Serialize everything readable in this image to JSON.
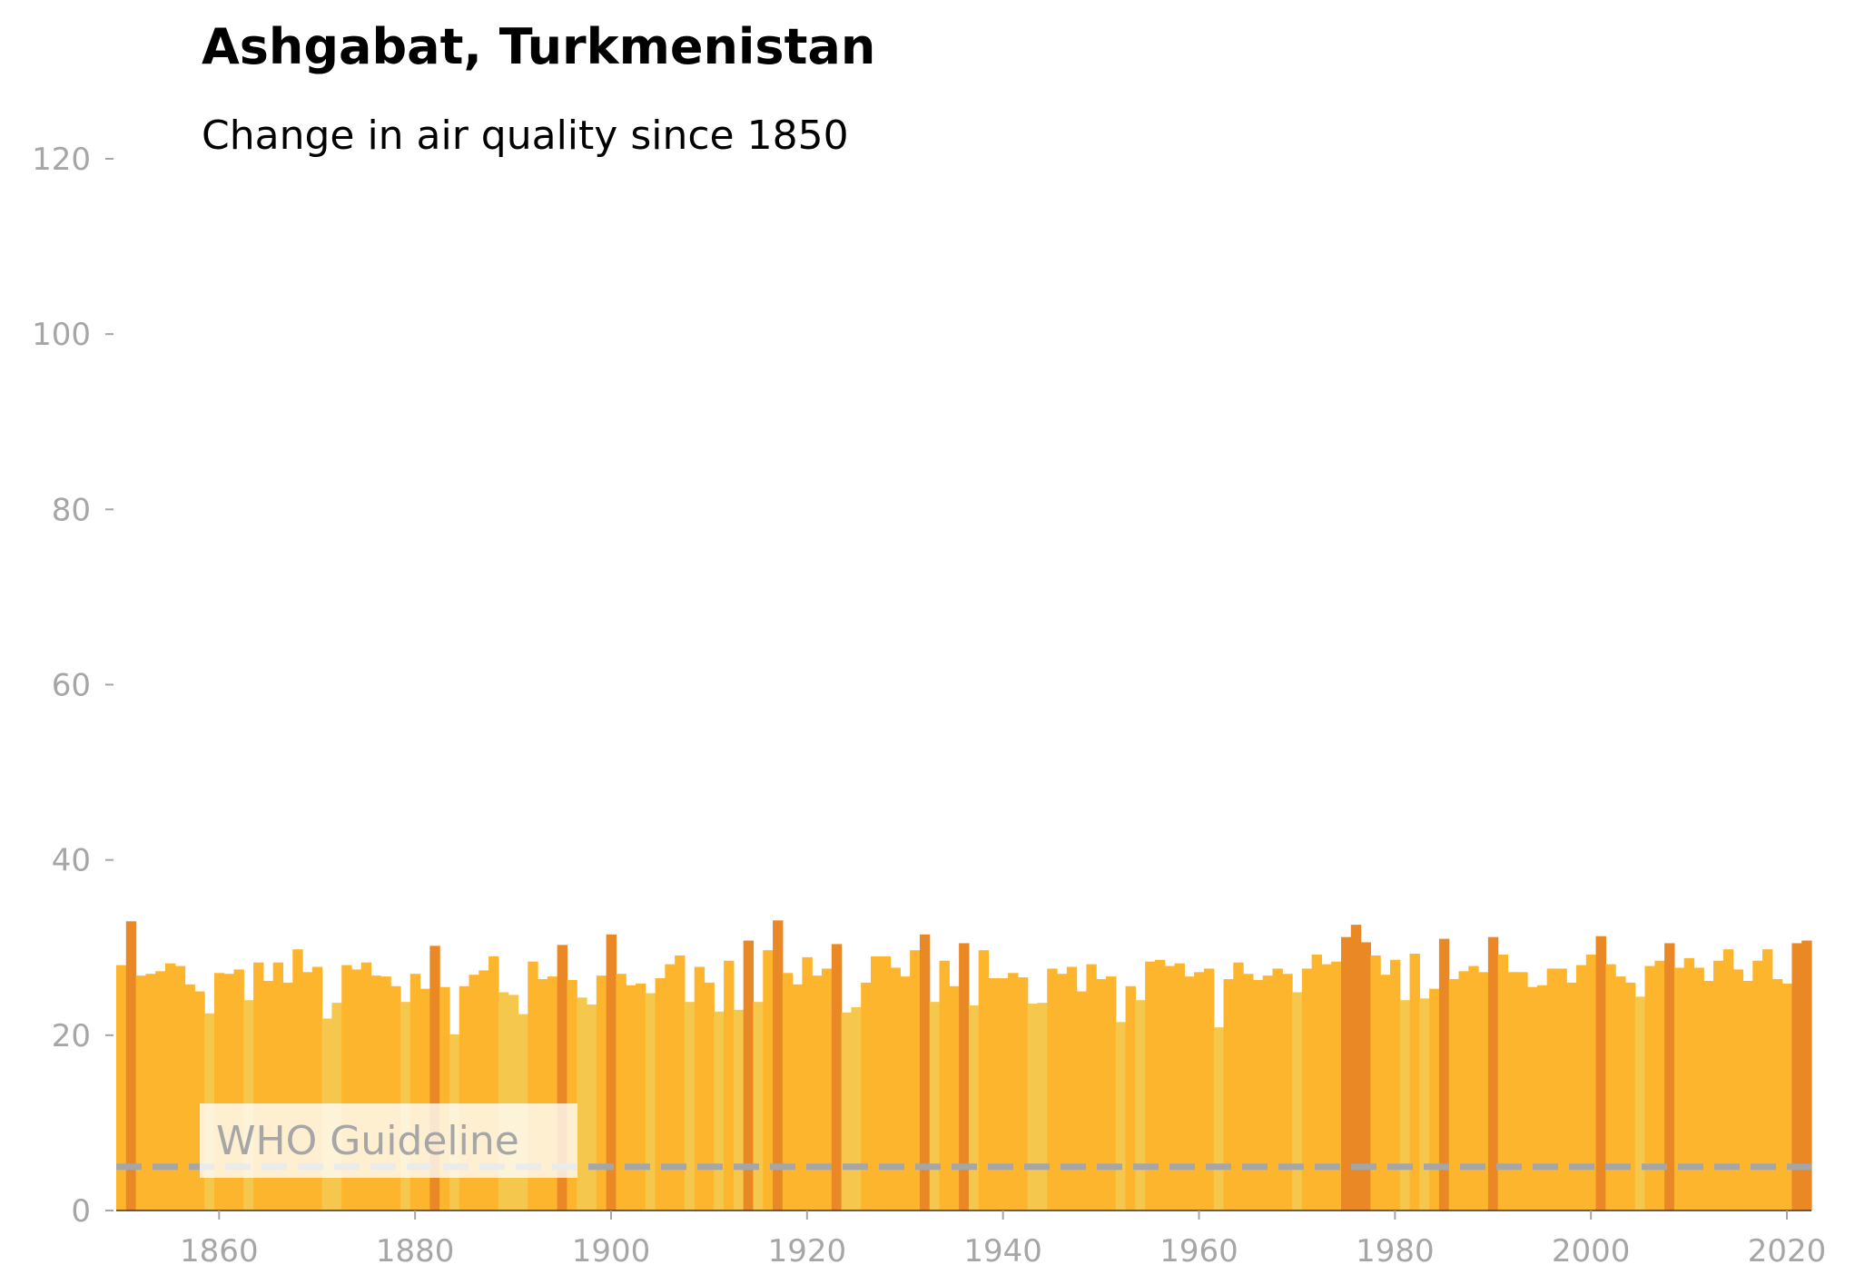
{
  "chart_data": {
    "type": "bar",
    "title": "Ashgabat, Turkmenistan",
    "subtitle": "Change in air quality since 1850",
    "xlabel": "",
    "ylabel": "",
    "xlim": [
      1850,
      2022
    ],
    "ylim": [
      0,
      120
    ],
    "grid": false,
    "x_ticks": [
      "1860",
      "1880",
      "1900",
      "1920",
      "1940",
      "1960",
      "1980",
      "2000",
      "2020"
    ],
    "y_ticks": [
      "0",
      "20",
      "40",
      "60",
      "80",
      "100",
      "120"
    ],
    "years": [
      1850,
      1851,
      1852,
      1853,
      1854,
      1855,
      1856,
      1857,
      1858,
      1859,
      1860,
      1861,
      1862,
      1863,
      1864,
      1865,
      1866,
      1867,
      1868,
      1869,
      1870,
      1871,
      1872,
      1873,
      1874,
      1875,
      1876,
      1877,
      1878,
      1879,
      1880,
      1881,
      1882,
      1883,
      1884,
      1885,
      1886,
      1887,
      1888,
      1889,
      1890,
      1891,
      1892,
      1893,
      1894,
      1895,
      1896,
      1897,
      1898,
      1899,
      1900,
      1901,
      1902,
      1903,
      1904,
      1905,
      1906,
      1907,
      1908,
      1909,
      1910,
      1911,
      1912,
      1913,
      1914,
      1915,
      1916,
      1917,
      1918,
      1919,
      1920,
      1921,
      1922,
      1923,
      1924,
      1925,
      1926,
      1927,
      1928,
      1929,
      1930,
      1931,
      1932,
      1933,
      1934,
      1935,
      1936,
      1937,
      1938,
      1939,
      1940,
      1941,
      1942,
      1943,
      1944,
      1945,
      1946,
      1947,
      1948,
      1949,
      1950,
      1951,
      1952,
      1953,
      1954,
      1955,
      1956,
      1957,
      1958,
      1959,
      1960,
      1961,
      1962,
      1963,
      1964,
      1965,
      1966,
      1967,
      1968,
      1969,
      1970,
      1971,
      1972,
      1973,
      1974,
      1975,
      1976,
      1977,
      1978,
      1979,
      1980,
      1981,
      1982,
      1983,
      1984,
      1985,
      1986,
      1987,
      1988,
      1989,
      1990,
      1991,
      1992,
      1993,
      1994,
      1995,
      1996,
      1997,
      1998,
      1999,
      2000,
      2001,
      2002,
      2003,
      2004,
      2005,
      2006,
      2007,
      2008,
      2009,
      2010,
      2011,
      2012,
      2013,
      2014,
      2015,
      2016,
      2017,
      2018,
      2019,
      2020,
      2021,
      2022
    ],
    "values": [
      28.0,
      33.0,
      26.8,
      27.0,
      27.3,
      28.2,
      27.9,
      25.8,
      25.0,
      22.5,
      27.1,
      27.0,
      27.5,
      24.0,
      28.3,
      26.2,
      28.3,
      26.0,
      29.8,
      27.2,
      27.8,
      21.9,
      23.7,
      28.0,
      27.5,
      28.3,
      26.8,
      26.7,
      25.6,
      23.8,
      27.0,
      25.3,
      30.2,
      25.5,
      20.1,
      25.6,
      26.9,
      27.4,
      29.0,
      24.9,
      24.6,
      22.4,
      28.4,
      26.4,
      26.7,
      30.3,
      26.3,
      24.3,
      23.5,
      26.8,
      31.5,
      27.0,
      25.7,
      25.9,
      24.8,
      26.5,
      28.1,
      29.1,
      23.8,
      27.8,
      26.0,
      22.7,
      28.5,
      22.9,
      30.8,
      23.8,
      29.7,
      33.1,
      27.1,
      25.8,
      28.9,
      26.8,
      27.6,
      30.4,
      22.6,
      23.2,
      26.0,
      29.0,
      29.0,
      27.7,
      26.7,
      29.7,
      31.5,
      23.8,
      28.5,
      25.6,
      30.5,
      23.4,
      29.7,
      26.5,
      26.5,
      27.1,
      26.6,
      23.6,
      23.7,
      27.6,
      27.0,
      27.8,
      25.0,
      28.1,
      26.4,
      26.7,
      21.5,
      25.6,
      24.0,
      28.4,
      28.6,
      27.9,
      28.2,
      26.7,
      27.2,
      27.6,
      20.9,
      26.4,
      28.3,
      27.0,
      26.3,
      26.8,
      27.6,
      27.0,
      24.9,
      27.6,
      29.2,
      28.1,
      28.4,
      31.2,
      32.6,
      30.6,
      29.1,
      26.9,
      28.6,
      24.0,
      29.3,
      24.2,
      25.3,
      31.0,
      26.4,
      27.3,
      27.9,
      27.2,
      31.2,
      29.2,
      27.2,
      27.2,
      25.5,
      25.7,
      27.6,
      27.6,
      26.0,
      28.0,
      29.2,
      31.3,
      28.1,
      26.7,
      26.0,
      24.4,
      27.9,
      28.5,
      30.5,
      27.7,
      28.8,
      27.7,
      26.2,
      28.5,
      29.8,
      27.5,
      26.2,
      28.5,
      29.8,
      26.4,
      25.9,
      30.5,
      30.8
    ],
    "level_colors": {
      "low": "#f5c74d",
      "mid": "#fdb52e",
      "high": "#e98825"
    },
    "color_thresholds": {
      "low_below": 25.0,
      "high_at_or_above": 30.0
    },
    "reference_line": {
      "label": "WHO Guideline",
      "value": 5,
      "color": "#a6a6a6",
      "style": "dashed"
    }
  }
}
